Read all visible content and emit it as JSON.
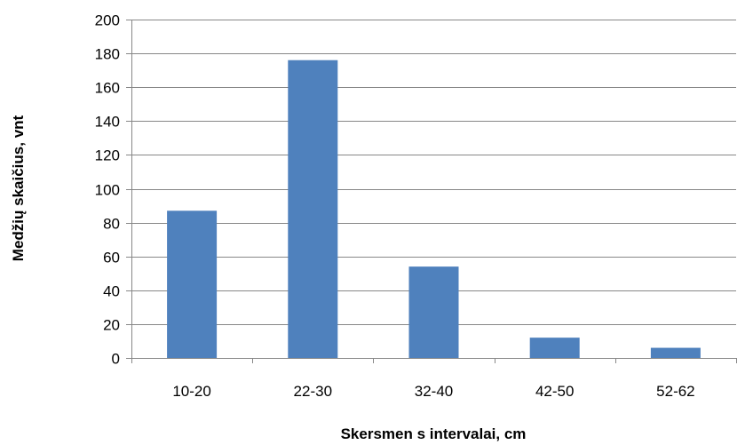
{
  "chart_data": {
    "type": "bar",
    "categories": [
      "10-20",
      "22-30",
      "32-40",
      "42-50",
      "52-62"
    ],
    "values": [
      87,
      176,
      54,
      12,
      6
    ],
    "title": "",
    "xlabel": "Skersmen s intervalai, cm",
    "ylabel": "Medžių skaičius, vnt",
    "ylim": [
      0,
      200
    ],
    "yticks": [
      0,
      20,
      40,
      60,
      80,
      100,
      120,
      140,
      160,
      180,
      200
    ],
    "grid": "horizontal",
    "legend": "none",
    "bar_color": "#4f81bd",
    "grid_color": "#878787"
  }
}
